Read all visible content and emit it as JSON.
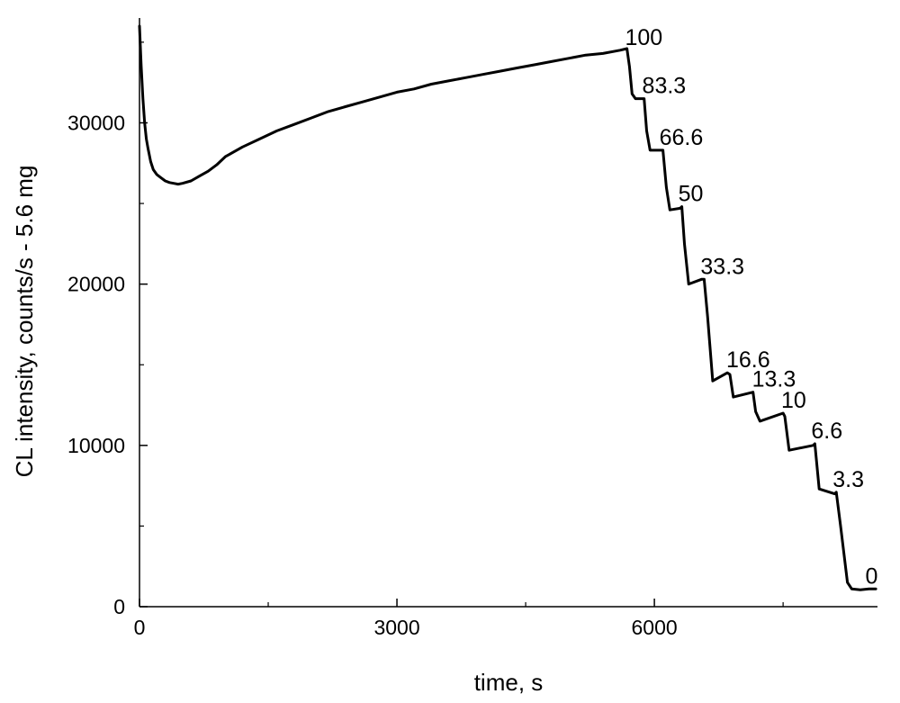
{
  "chart_data": {
    "type": "line",
    "title": "",
    "xlabel": "time, s",
    "ylabel": "CL intensity, counts/s - 5.6 mg",
    "xlim": [
      0,
      8600
    ],
    "ylim": [
      0,
      36500
    ],
    "x_ticks": [
      0,
      3000,
      6000
    ],
    "x_tick_labels": [
      "0",
      "3000",
      "6000"
    ],
    "x_minor_ticks": [
      1500,
      4500,
      7500
    ],
    "y_ticks": [
      0,
      10000,
      20000,
      30000
    ],
    "y_tick_labels": [
      "0",
      "10000",
      "20000",
      "30000"
    ],
    "y_minor_ticks": [
      5000,
      15000,
      25000,
      35000
    ],
    "grid": false,
    "series": [
      {
        "x": [
          0,
          20,
          40,
          60,
          80,
          100,
          130,
          160,
          200,
          250,
          300,
          350,
          400,
          450,
          500,
          600,
          700,
          800,
          900,
          1000,
          1200,
          1400,
          1600,
          1800,
          2000,
          2200,
          2400,
          2600,
          2800,
          3000,
          3200,
          3400,
          3600,
          3800,
          4000,
          4200,
          4400,
          4600,
          4800,
          5000,
          5200,
          5400,
          5600,
          5680,
          5710,
          5740,
          5780,
          5880,
          5910,
          5950,
          6080,
          6100,
          6140,
          6180,
          6300,
          6320,
          6350,
          6400,
          6550,
          6580,
          6620,
          6680,
          6850,
          6880,
          6920,
          7150,
          7180,
          7230,
          7500,
          7520,
          7570,
          7850,
          7870,
          7920,
          8100,
          8120,
          8170,
          8250,
          8300,
          8400,
          8500,
          8580
        ],
        "y": [
          36000,
          33500,
          31500,
          30000,
          29000,
          28400,
          27600,
          27100,
          26800,
          26600,
          26400,
          26300,
          26250,
          26200,
          26250,
          26400,
          26700,
          27000,
          27400,
          27900,
          28500,
          29000,
          29500,
          29900,
          30300,
          30700,
          31000,
          31300,
          31600,
          31900,
          32100,
          32400,
          32600,
          32800,
          33000,
          33200,
          33400,
          33600,
          33800,
          34000,
          34200,
          34300,
          34500,
          34600,
          33500,
          31800,
          31500,
          31500,
          29500,
          28300,
          28300,
          28300,
          26000,
          24600,
          24700,
          24800,
          22500,
          20000,
          20300,
          20300,
          18000,
          14000,
          14500,
          14400,
          13000,
          13300,
          12100,
          11500,
          12000,
          11800,
          9700,
          10000,
          10100,
          7300,
          7000,
          7100,
          5000,
          1500,
          1100,
          1050,
          1100,
          1100
        ]
      }
    ],
    "annotations": [
      {
        "text": "100",
        "x": 5700,
        "y": 34500
      },
      {
        "text": "83.3",
        "x": 5900,
        "y": 31500
      },
      {
        "text": "66.6",
        "x": 6100,
        "y": 28300
      },
      {
        "text": "50",
        "x": 6320,
        "y": 24800
      },
      {
        "text": "33.3",
        "x": 6580,
        "y": 20300
      },
      {
        "text": "16.6",
        "x": 6880,
        "y": 14500
      },
      {
        "text": "13.3",
        "x": 7180,
        "y": 13300
      },
      {
        "text": "10",
        "x": 7520,
        "y": 12000
      },
      {
        "text": "6.6",
        "x": 7870,
        "y": 10100
      },
      {
        "text": "3.3",
        "x": 8120,
        "y": 7100
      },
      {
        "text": "0",
        "x": 8500,
        "y": 1100
      }
    ]
  }
}
